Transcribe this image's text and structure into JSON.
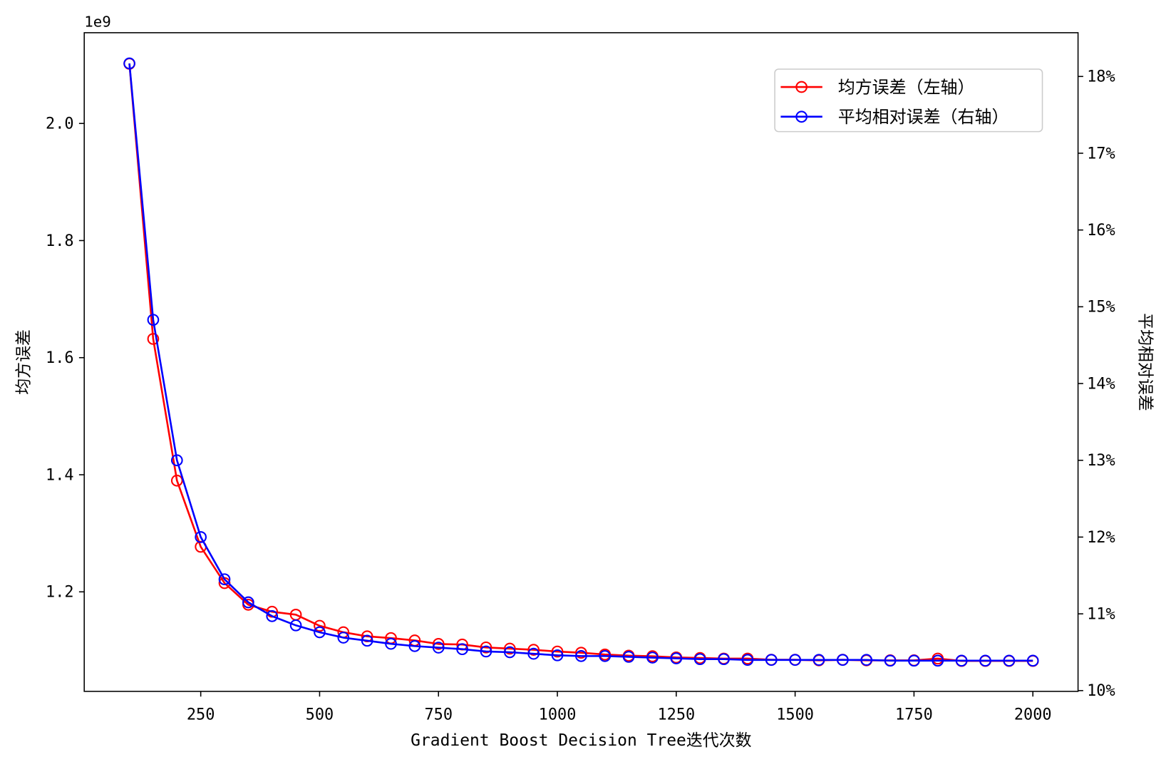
{
  "chart_data": {
    "type": "line",
    "title": "",
    "xlabel": "Gradient Boost Decision Tree迭代次数",
    "ylabel": "均方误差",
    "ylabel_right": "平均相对误差",
    "y_offset_text": "1e9",
    "grid": false,
    "legend_position": "top-right",
    "x": [
      100,
      150,
      200,
      250,
      300,
      350,
      400,
      450,
      500,
      550,
      600,
      650,
      700,
      750,
      800,
      850,
      900,
      950,
      1000,
      1050,
      1100,
      1150,
      1200,
      1250,
      1300,
      1350,
      1400,
      1450,
      1500,
      1550,
      1600,
      1650,
      1700,
      1750,
      1800,
      1850,
      1900,
      1950,
      2000
    ],
    "xlim": [
      5,
      2095
    ],
    "xticks": [
      250,
      500,
      750,
      1000,
      1250,
      1500,
      1750,
      2000
    ],
    "xtick_labels": [
      "250",
      "500",
      "750",
      "1000",
      "1250",
      "1500",
      "1750",
      "2000"
    ],
    "ylim": [
      1.03,
      2.155
    ],
    "yticks": [
      1.2,
      1.4,
      1.6,
      1.8,
      2.0
    ],
    "ytick_labels": [
      "1.2",
      "1.4",
      "1.6",
      "1.8",
      "2.0"
    ],
    "ylim_right": [
      9.99,
      18.57
    ],
    "yticks_right": [
      10,
      11,
      12,
      13,
      14,
      15,
      16,
      17,
      18
    ],
    "ytick_labels_right": [
      "10%",
      "11%",
      "12%",
      "13%",
      "14%",
      "15%",
      "16%",
      "17%",
      "18%"
    ],
    "series": [
      {
        "name": "均方误差（左轴）",
        "axis": "left",
        "unit": "1e9",
        "color": "#ff0000",
        "marker": "open-circle",
        "values": [
          2.102,
          1.632,
          1.39,
          1.277,
          1.215,
          1.178,
          1.166,
          1.161,
          1.142,
          1.131,
          1.124,
          1.121,
          1.117,
          1.111,
          1.11,
          1.105,
          1.103,
          1.101,
          1.098,
          1.096,
          1.093,
          1.091,
          1.09,
          1.088,
          1.087,
          1.086,
          1.086,
          1.084,
          1.084,
          1.083,
          1.084,
          1.083,
          1.083,
          1.083,
          1.086,
          1.082,
          1.082,
          1.082,
          1.082
        ]
      },
      {
        "name": "平均相对误差（右轴）",
        "axis": "right",
        "unit": "%",
        "color": "#0000ff",
        "marker": "open-circle",
        "values": [
          18.17,
          14.83,
          13.0,
          12.0,
          11.45,
          11.15,
          10.97,
          10.85,
          10.76,
          10.69,
          10.65,
          10.61,
          10.58,
          10.56,
          10.54,
          10.51,
          10.5,
          10.48,
          10.46,
          10.45,
          10.45,
          10.44,
          10.43,
          10.42,
          10.41,
          10.41,
          10.4,
          10.4,
          10.4,
          10.4,
          10.4,
          10.4,
          10.39,
          10.39,
          10.39,
          10.39,
          10.39,
          10.39,
          10.39
        ]
      }
    ]
  }
}
